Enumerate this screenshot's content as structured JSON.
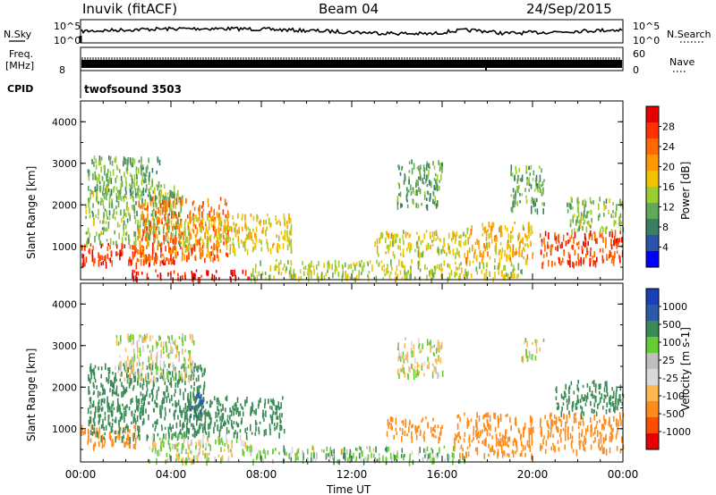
{
  "header": {
    "station": "Inuvik (fitACF)",
    "beam": "Beam 04",
    "date": "24/Sep/2015"
  },
  "top_panels": {
    "nsky_label": "N.Sky",
    "nsky_ticks": [
      "10^5",
      "10^0"
    ],
    "nsearch_label": "N.Search",
    "nsearch_ticks": [
      "10^5",
      "10^0"
    ],
    "freq_label": "Freq.",
    "freq_unit": "[MHz]",
    "freq_tick": "8",
    "nave_label": "Nave",
    "nave_ticks": [
      "60",
      "0"
    ],
    "cpid_label": "CPID",
    "cpid_value": "twofsound 3503"
  },
  "colors": {
    "power": [
      "#0000ff",
      "#2a52a8",
      "#3a7f62",
      "#62a85a",
      "#9acd32",
      "#f2c400",
      "#ff9900",
      "#ff6a00",
      "#ff3300",
      "#e60000"
    ],
    "velocity": [
      "#e60000",
      "#ff4d00",
      "#ff8c1a",
      "#ffb84d",
      "#d9d9d9",
      "#bfbfbf",
      "#66cc33",
      "#3a8a55",
      "#2a5aa8",
      "#1a3fb8"
    ]
  },
  "chart_data": [
    {
      "type": "heatmap",
      "title": "Power",
      "xlabel": "",
      "ylabel": "Slant Range [km]",
      "x_ticks": [
        "00:00",
        "04:00",
        "08:00",
        "12:00",
        "16:00",
        "20:00",
        "00:00"
      ],
      "y_ticks": [
        "4000",
        "3000",
        "2000",
        "1000"
      ],
      "ylim": [
        200,
        4500
      ],
      "colorbar": {
        "label": "Power [dB]",
        "ticks": [
          "28",
          "24",
          "20",
          "16",
          "12",
          "8",
          "4"
        ],
        "range": [
          0,
          30
        ]
      },
      "regions": [
        {
          "t0": 0.0,
          "t1": 4.2,
          "r0": 600,
          "r1": 1100,
          "level": 26
        },
        {
          "t0": 2.2,
          "t1": 7.6,
          "r0": 250,
          "r1": 450,
          "level": 28
        },
        {
          "t0": 0.2,
          "t1": 4.5,
          "r0": 1100,
          "r1": 2500,
          "level": 12
        },
        {
          "t0": 2.5,
          "t1": 6.5,
          "r0": 700,
          "r1": 2200,
          "level": 22
        },
        {
          "t0": 4.5,
          "t1": 9.3,
          "r0": 900,
          "r1": 1800,
          "level": 16
        },
        {
          "t0": 0.3,
          "t1": 3.5,
          "r0": 2200,
          "r1": 3200,
          "level": 11
        },
        {
          "t0": 7.5,
          "t1": 19.5,
          "r0": 250,
          "r1": 700,
          "level": 14
        },
        {
          "t0": 13.0,
          "t1": 17.2,
          "r0": 800,
          "r1": 1400,
          "level": 15
        },
        {
          "t0": 14.0,
          "t1": 16.0,
          "r0": 2000,
          "r1": 3100,
          "level": 10
        },
        {
          "t0": 17.0,
          "t1": 20.0,
          "r0": 700,
          "r1": 1600,
          "level": 18
        },
        {
          "t0": 19.0,
          "t1": 20.5,
          "r0": 1900,
          "r1": 3000,
          "level": 11
        },
        {
          "t0": 20.3,
          "t1": 24.0,
          "r0": 600,
          "r1": 1400,
          "level": 25
        },
        {
          "t0": 21.5,
          "t1": 24.0,
          "r0": 1400,
          "r1": 2200,
          "level": 12
        }
      ]
    },
    {
      "type": "heatmap",
      "title": "Velocity",
      "xlabel": "Time UT",
      "ylabel": "Slant Range [km]",
      "x_ticks": [
        "00:00",
        "04:00",
        "08:00",
        "12:00",
        "16:00",
        "20:00",
        "00:00"
      ],
      "y_ticks": [
        "4000",
        "3000",
        "2000",
        "1000"
      ],
      "ylim": [
        200,
        4500
      ],
      "colorbar": {
        "label": "Velocity [m s-1]",
        "ticks": [
          "1000",
          "500",
          "100",
          "25",
          "-25",
          "-100",
          "-500",
          "-1000"
        ],
        "range": [
          -1000,
          1000
        ]
      },
      "regions": [
        {
          "t0": 0.0,
          "t1": 2.5,
          "r0": 600,
          "r1": 1100,
          "level": -400
        },
        {
          "t0": 0.3,
          "t1": 5.5,
          "r0": 800,
          "r1": 2600,
          "level": 300
        },
        {
          "t0": 1.5,
          "t1": 5.0,
          "r0": 2200,
          "r1": 3300,
          "level": 0
        },
        {
          "t0": 3.0,
          "t1": 7.5,
          "r0": 250,
          "r1": 900,
          "level": 10
        },
        {
          "t0": 4.5,
          "t1": 9.0,
          "r0": 900,
          "r1": 1800,
          "level": 200
        },
        {
          "t0": 4.8,
          "t1": 5.4,
          "r0": 1300,
          "r1": 1900,
          "level": 800
        },
        {
          "t0": 7.5,
          "t1": 17.0,
          "r0": 250,
          "r1": 600,
          "level": 60
        },
        {
          "t0": 13.5,
          "t1": 16.0,
          "r0": 800,
          "r1": 1300,
          "level": -300
        },
        {
          "t0": 14.0,
          "t1": 16.0,
          "r0": 2300,
          "r1": 3200,
          "level": 0
        },
        {
          "t0": 16.5,
          "t1": 20.0,
          "r0": 400,
          "r1": 1400,
          "level": -200
        },
        {
          "t0": 19.5,
          "t1": 20.5,
          "r0": 2700,
          "r1": 3200,
          "level": -10
        },
        {
          "t0": 20.3,
          "t1": 24.0,
          "r0": 500,
          "r1": 1400,
          "level": -300
        },
        {
          "t0": 21.0,
          "t1": 24.0,
          "r0": 1400,
          "r1": 2200,
          "level": 200
        }
      ]
    }
  ]
}
